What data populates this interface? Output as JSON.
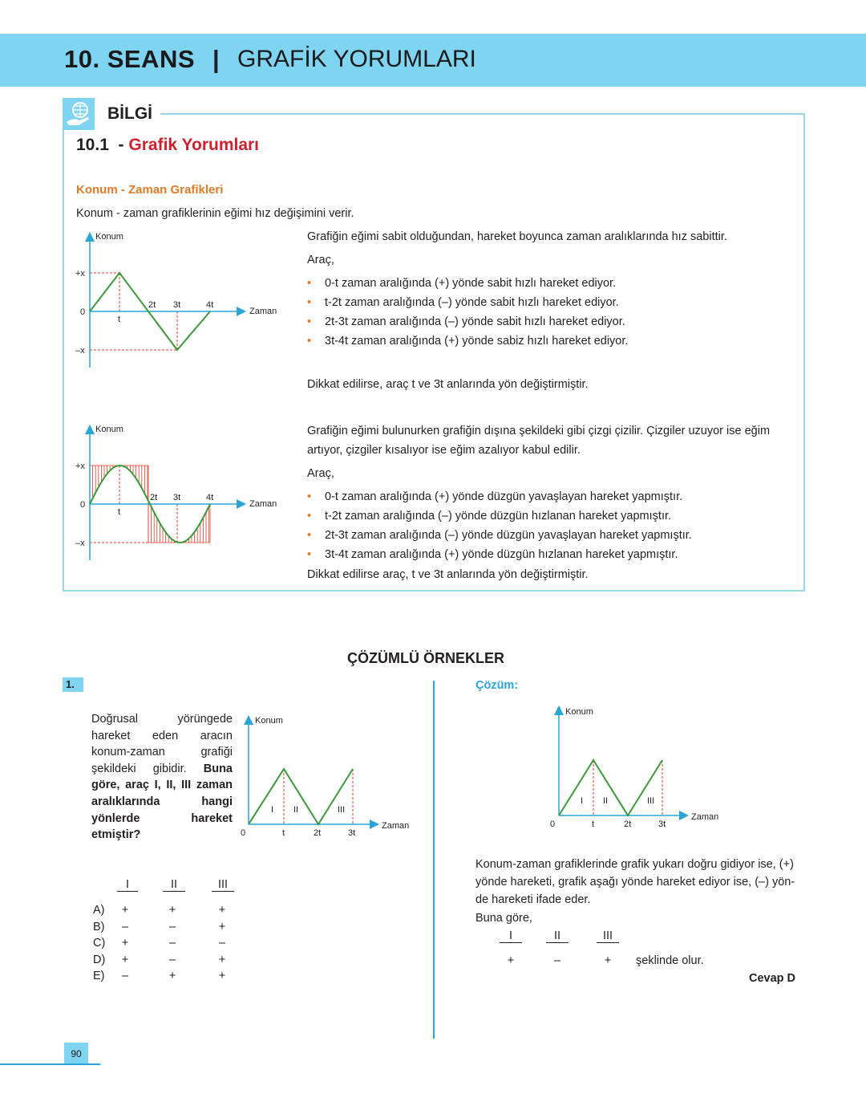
{
  "header": {
    "session": "10. SEANS",
    "separator": "|",
    "title": "GRAFİK YORUMLARI"
  },
  "info": {
    "badge": "BİLGİ",
    "section_number": "10.1",
    "section_dash": "-",
    "section_title": "Grafik Yorumları",
    "subtitle": "Konum - Zaman Grafikleri",
    "intro": "Konum - zaman grafiklerinin eğimi hız değişimini verir.",
    "block1": {
      "lead": "Grafiğin eğimi sabit olduğundan, hareket boyunca zaman aralıklarında hız sabittir.",
      "arac": "Araç,",
      "bullets": [
        "0-t zaman aralığında (+) yönde sabit hızlı hareket ediyor.",
        "t-2t zaman aralığında (–) yönde sabit hızlı hareket ediyor.",
        "2t-3t zaman aralığında (–) yönde sabit hızlı hareket ediyor.",
        "3t-4t zaman aralığında (+) yönde sabiz hızlı hareket ediyor."
      ],
      "note": "Dikkat edilirse, araç t ve 3t anlarında yön değiştirmiştir."
    },
    "block2": {
      "lead1": "Grafiğin eğimi bulunurken grafiğin dışına şekildeki gibi çizgi çizilir. Çizgiler uzuyor ise eğim",
      "lead2": "artıyor, çizgiler kısalıyor ise eğim azalıyor kabul edilir.",
      "arac": "Araç,",
      "bullets": [
        "0-t zaman aralığında (+) yönde düzgün yavaşlayan hareket yapmıştır.",
        "t-2t zaman aralığında (–) yönde düzgün hızlanan hareket yapmıştır.",
        "2t-3t zaman aralığında (–) yönde düzgün yavaşlayan hareket yapmıştır.",
        "3t-4t zaman aralığında (+) yönde düzgün hızlanan hareket yapmıştır."
      ],
      "note": "Dikkat edilirse araç, t ve 3t anlarında yön değiştirmiştir."
    },
    "graph_labels": {
      "y": "Konum",
      "x": "Zaman",
      "plus": "+x",
      "zero": "0",
      "minus": "–x",
      "t": "t",
      "t2": "2t",
      "t3": "3t",
      "t4": "4t",
      "r1": "I",
      "r2": "II",
      "r3": "III"
    }
  },
  "examples": {
    "heading": "ÇÖZÜMLÜ ÖRNEKLER",
    "number": "1.",
    "question_text": "Doğrusal yörüngede hareket eden aracın konum-zaman grafiği şekildeki gibidir.",
    "question_bold": "Buna göre, araç I, II, III zaman aralıklarında hangi yönlerde hareket etmiştir?",
    "columns": [
      "I",
      "II",
      "III"
    ],
    "options": [
      {
        "letter": "A)",
        "v": [
          "+",
          "+",
          "+"
        ]
      },
      {
        "letter": "B)",
        "v": [
          "–",
          "–",
          "+"
        ]
      },
      {
        "letter": "C)",
        "v": [
          "+",
          "–",
          "–"
        ]
      },
      {
        "letter": "D)",
        "v": [
          "+",
          "–",
          "+"
        ]
      },
      {
        "letter": "E)",
        "v": [
          "–",
          "+",
          "+"
        ]
      }
    ],
    "solution": {
      "label": "Çözüm:",
      "text1": "Konum-zaman grafiklerinde grafik yukarı doğru gidiyor ise, (+)",
      "text2": "yönde hareketi, grafik aşağı yönde hareket ediyor ise, (–) yön-",
      "text3": "de hareketi ifade eder.",
      "buna": "Buna göre,",
      "columns": [
        "I",
        "II",
        "III"
      ],
      "signs": [
        "+",
        "–",
        "+"
      ],
      "suffix": "şeklinde olur.",
      "answer": "Cevap D"
    }
  },
  "page_number": "90",
  "colors": {
    "band": "#7fd4f2",
    "accent_red": "#d0202e",
    "accent_orange": "#e07b2a",
    "graph_line": "#3a9a3a",
    "axis": "#2aa5d8",
    "guide": "#e03a2a"
  }
}
